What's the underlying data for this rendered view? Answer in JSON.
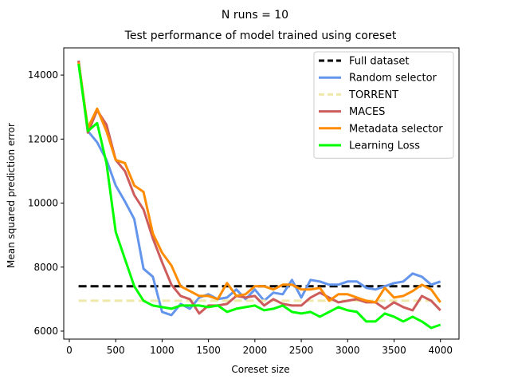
{
  "chart_data": {
    "type": "line",
    "suptitle": "N runs = 10",
    "title": "Test performance of model trained using coreset",
    "xlabel": "Coreset size",
    "ylabel": "Mean squared prediction error",
    "xlim": [
      -60,
      4200
    ],
    "ylim": [
      5750,
      14850
    ],
    "xticks": [
      0,
      500,
      1000,
      1500,
      2000,
      2500,
      3000,
      3500,
      4000
    ],
    "yticks": [
      6000,
      8000,
      10000,
      12000,
      14000
    ],
    "xtick_labels": [
      "0",
      "500",
      "1000",
      "1500",
      "2000",
      "2500",
      "3000",
      "3500",
      "4000"
    ],
    "ytick_labels": [
      "6000",
      "8000",
      "10000",
      "12000",
      "14000"
    ],
    "grid": false,
    "legend_position": "top-right",
    "x": [
      100,
      200,
      300,
      400,
      500,
      600,
      700,
      800,
      900,
      1000,
      1100,
      1200,
      1300,
      1400,
      1500,
      1600,
      1700,
      1800,
      1900,
      2000,
      2100,
      2200,
      2300,
      2400,
      2500,
      2600,
      2700,
      2800,
      2900,
      3000,
      3100,
      3200,
      3300,
      3400,
      3500,
      3600,
      3700,
      3800,
      3900,
      4000
    ],
    "series": [
      {
        "name": "Full dataset",
        "color": "#000000",
        "dash": "dashed",
        "constant": 7400
      },
      {
        "name": "Random selector",
        "color": "#6495ed",
        "dash": "solid",
        "values": [
          14450,
          12250,
          11900,
          11350,
          10550,
          10050,
          9500,
          7950,
          7700,
          6600,
          6500,
          6850,
          6700,
          7050,
          7150,
          7000,
          7050,
          7300,
          7000,
          7300,
          6950,
          7200,
          7150,
          7600,
          7050,
          7600,
          7550,
          7450,
          7450,
          7550,
          7550,
          7350,
          7300,
          7400,
          7500,
          7550,
          7800,
          7700,
          7450,
          7550
        ]
      },
      {
        "name": "TORRENT",
        "color": "#eee8aa",
        "dash": "dashed",
        "constant": 6950
      },
      {
        "name": "MACES",
        "color": "#cd5c5c",
        "dash": "solid",
        "values": [
          14450,
          12200,
          12900,
          12450,
          11350,
          11000,
          10250,
          9800,
          8900,
          8150,
          7450,
          7100,
          7000,
          6550,
          6800,
          6800,
          6850,
          7100,
          7050,
          7100,
          6800,
          7000,
          6850,
          6800,
          6800,
          7050,
          7200,
          7050,
          6900,
          6950,
          7000,
          6900,
          6900,
          6700,
          6900,
          6750,
          6650,
          7100,
          6950,
          6650
        ]
      },
      {
        "name": "Metadata selector",
        "color": "#ff8c00",
        "dash": "solid",
        "values": [
          14400,
          12350,
          12950,
          12250,
          11350,
          11250,
          10550,
          10350,
          9050,
          8450,
          8050,
          7400,
          7250,
          7100,
          7100,
          7000,
          7500,
          7100,
          7150,
          7400,
          7400,
          7300,
          7450,
          7450,
          7300,
          7300,
          7350,
          6950,
          7150,
          7150,
          7050,
          6950,
          6900,
          7350,
          7050,
          7100,
          7250,
          7450,
          7300,
          6900
        ]
      },
      {
        "name": "Learning Loss",
        "color": "#00ff00",
        "dash": "solid",
        "values": [
          14350,
          12250,
          12500,
          11250,
          9100,
          8250,
          7400,
          6950,
          6800,
          6750,
          6700,
          6800,
          6800,
          6800,
          6750,
          6800,
          6600,
          6700,
          6750,
          6800,
          6650,
          6700,
          6800,
          6600,
          6550,
          6600,
          6450,
          6600,
          6750,
          6650,
          6600,
          6300,
          6300,
          6550,
          6450,
          6300,
          6450,
          6300,
          6100,
          6200
        ]
      }
    ]
  }
}
